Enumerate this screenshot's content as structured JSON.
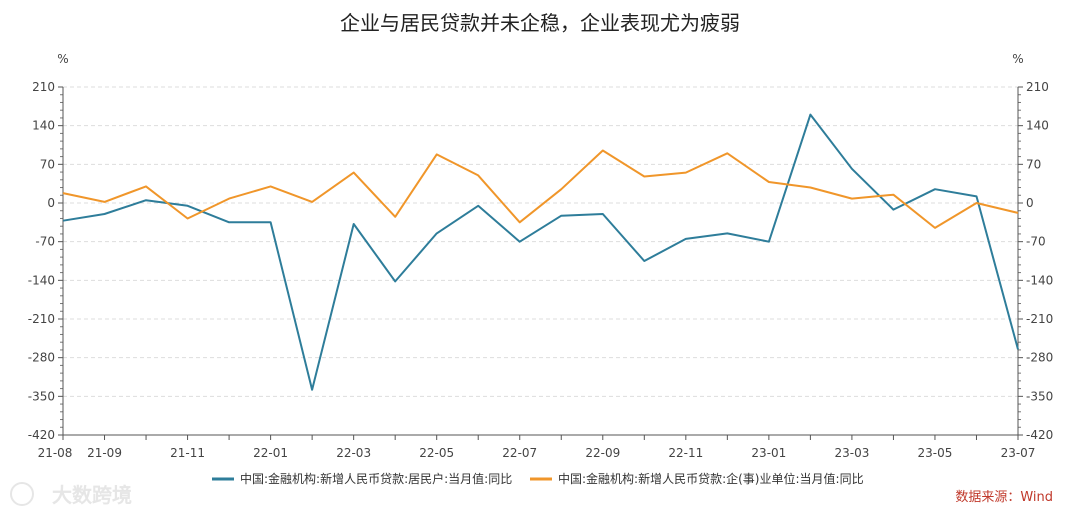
{
  "chart_data": {
    "type": "line",
    "title": "企业与居民贷款并未企稳，企业表现尤为疲弱",
    "y_unit_left": "%",
    "y_unit_right": "%",
    "ylim": [
      -420,
      210
    ],
    "yticks": [
      210,
      140,
      70,
      0,
      -70,
      -140,
      -210,
      -280,
      -350,
      -420
    ],
    "x": [
      "21-08",
      "21-09",
      "21-10",
      "21-11",
      "21-12",
      "22-01",
      "22-02",
      "22-03",
      "22-04",
      "22-05",
      "22-06",
      "22-07",
      "22-08",
      "22-09",
      "22-10",
      "22-11",
      "22-12",
      "23-01",
      "23-02",
      "23-03",
      "23-04",
      "23-05",
      "23-06",
      "23-07"
    ],
    "x_tick_labels": [
      "21-08",
      "21-09",
      "21-11",
      "22-01",
      "22-03",
      "22-05",
      "22-07",
      "22-09",
      "22-11",
      "23-01",
      "23-03",
      "23-05",
      "23-07"
    ],
    "grid": "horizontal dashed",
    "legend_position": "bottom",
    "series": [
      {
        "name": "中国:金融机构:新增人民币贷款:居民户:当月值:同比",
        "color": "#2e7d9a",
        "values": [
          -32,
          -20,
          5,
          -5,
          -35,
          -35,
          -338,
          -38,
          -142,
          -55,
          -5,
          -70,
          -23,
          -20,
          -105,
          -65,
          -55,
          -70,
          160,
          62,
          -12,
          25,
          12,
          -265
        ]
      },
      {
        "name": "中国:金融机构:新增人民币贷款:企(事)业单位:当月值:同比",
        "color": "#f0962a",
        "values": [
          18,
          2,
          30,
          -28,
          8,
          30,
          2,
          55,
          -25,
          88,
          50,
          -35,
          25,
          95,
          48,
          55,
          90,
          38,
          28,
          8,
          15,
          -45,
          0,
          -18
        ]
      }
    ],
    "source": "数据来源：Wind",
    "watermark": "大数跨境"
  }
}
